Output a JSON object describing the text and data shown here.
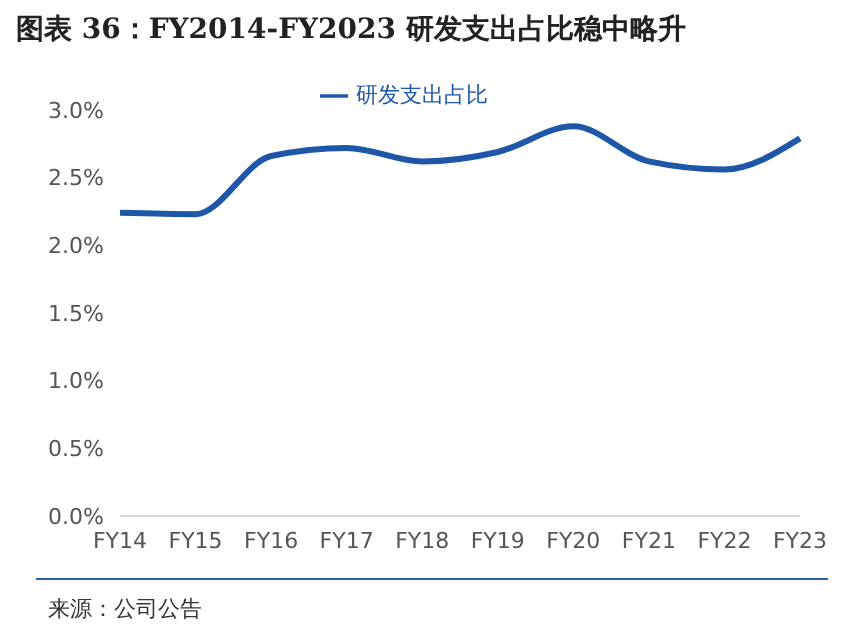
{
  "chart_data": {
    "type": "line",
    "title": "图表 36：FY2014-FY2023 研发支出占比稳中略升",
    "categories": [
      "FY14",
      "FY15",
      "FY16",
      "FY17",
      "FY18",
      "FY19",
      "FY20",
      "FY21",
      "FY22",
      "FY23"
    ],
    "series": [
      {
        "name": "研发支出占比",
        "color": "#1f57a8",
        "values": [
          2.24,
          2.23,
          2.66,
          2.72,
          2.62,
          2.69,
          2.88,
          2.62,
          2.56,
          2.79
        ]
      }
    ],
    "ylim": [
      0,
      3
    ],
    "yticks": [
      {
        "value": 0,
        "label": "0.0%"
      },
      {
        "value": 0.5,
        "label": "0.5%"
      },
      {
        "value": 1,
        "label": "1.0%"
      },
      {
        "value": 1.5,
        "label": "1.5%"
      },
      {
        "value": 2,
        "label": "2.0%"
      },
      {
        "value": 2.5,
        "label": "2.5%"
      },
      {
        "value": 3,
        "label": "3.0%"
      }
    ],
    "grid": false,
    "legend": "top",
    "marker": "none",
    "line_style": "solid",
    "annotations": [
      "来源：公司公告"
    ]
  }
}
